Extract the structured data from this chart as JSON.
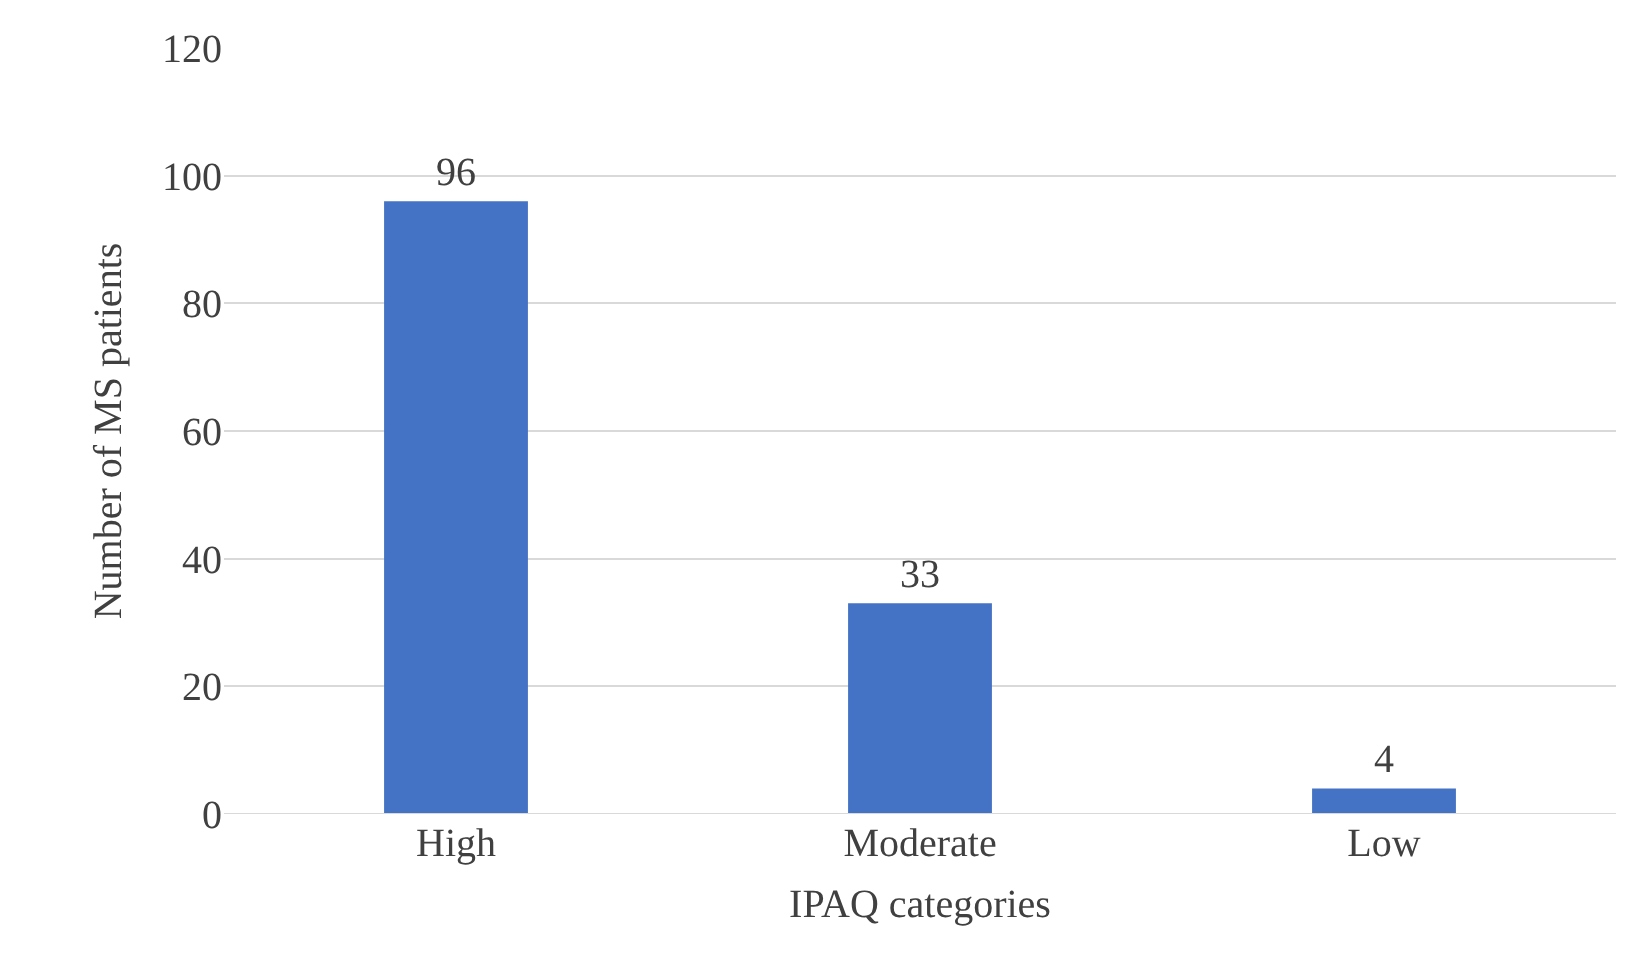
{
  "chart_data": {
    "type": "bar",
    "xlabel": "IPAQ categories",
    "ylabel": "Number of MS patients",
    "categories": [
      "High",
      "Moderate",
      "Low"
    ],
    "values": [
      96,
      33,
      4
    ],
    "color": "#4472c4",
    "ylim": [
      0,
      120
    ],
    "yticks": [
      0,
      20,
      40,
      60,
      80,
      100,
      120
    ],
    "grid": "y",
    "data_labels": true,
    "legend": false
  }
}
